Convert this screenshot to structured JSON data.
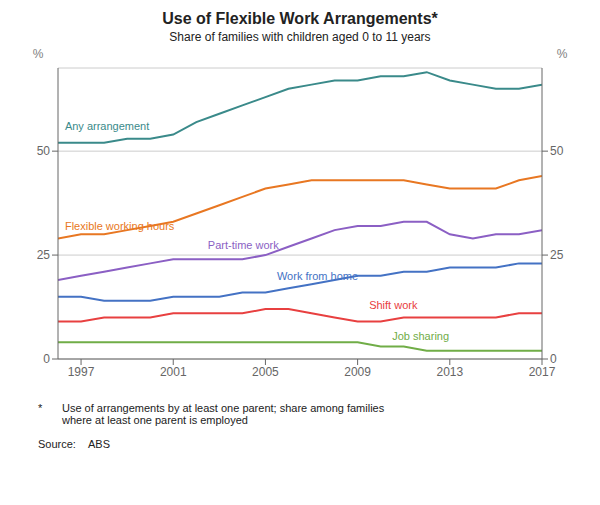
{
  "chart_data": {
    "type": "line",
    "title": "Use of Flexible Work Arrangements*",
    "subtitle": "Share of families with children aged 0 to 11 years",
    "ylabel": "%",
    "y2label": "%",
    "footnote_star": "*",
    "footnote_text": "Use of arrangements by at least one parent; share among families\nwhere at least one parent is employed",
    "source": "Source:",
    "source_body": "ABS",
    "x": [
      1996,
      1997,
      1998,
      1999,
      2000,
      2001,
      2002,
      2003,
      2004,
      2005,
      2006,
      2007,
      2008,
      2009,
      2010,
      2011,
      2012,
      2013,
      2014,
      2015,
      2016,
      2017
    ],
    "series": [
      {
        "name": "Any arrangement",
        "color": "#3A8A8A",
        "values": [
          52,
          52,
          52,
          53,
          53,
          54,
          57,
          59,
          61,
          63,
          65,
          66,
          67,
          67,
          68,
          68,
          69,
          67,
          66,
          65,
          65,
          66
        ]
      },
      {
        "name": "Flexible working hours",
        "color": "#E87722",
        "values": [
          29,
          30,
          30,
          31,
          32,
          33,
          35,
          37,
          39,
          41,
          42,
          43,
          43,
          43,
          43,
          43,
          42,
          41,
          41,
          41,
          43,
          44
        ]
      },
      {
        "name": "Part-time work",
        "color": "#8B5FC4",
        "values": [
          19,
          20,
          21,
          22,
          23,
          24,
          24,
          24,
          24,
          25,
          27,
          29,
          31,
          32,
          32,
          33,
          33,
          30,
          29,
          30,
          30,
          31
        ]
      },
      {
        "name": "Work from home",
        "color": "#4472C4",
        "values": [
          15,
          15,
          14,
          14,
          14,
          15,
          15,
          15,
          16,
          16,
          17,
          18,
          19,
          20,
          20,
          21,
          21,
          22,
          22,
          22,
          23,
          23
        ]
      },
      {
        "name": "Shift work",
        "color": "#E84040",
        "values": [
          9,
          9,
          10,
          10,
          10,
          11,
          11,
          11,
          11,
          12,
          12,
          11,
          10,
          9,
          9,
          10,
          10,
          10,
          10,
          10,
          11,
          11
        ]
      },
      {
        "name": "Job sharing",
        "color": "#70AD47",
        "values": [
          4,
          4,
          4,
          4,
          4,
          4,
          4,
          4,
          4,
          4,
          4,
          4,
          4,
          4,
          3,
          3,
          2,
          2,
          2,
          2,
          2,
          2
        ]
      }
    ],
    "xlim": [
      1996,
      2017
    ],
    "xticks": [
      1997,
      2001,
      2005,
      2009,
      2013,
      2017
    ],
    "ylim": [
      0,
      70
    ],
    "yticks": [
      0,
      25,
      50
    ],
    "y2lim": [
      0,
      70
    ],
    "y2ticks": [
      0,
      25,
      50
    ],
    "grid": true
  }
}
